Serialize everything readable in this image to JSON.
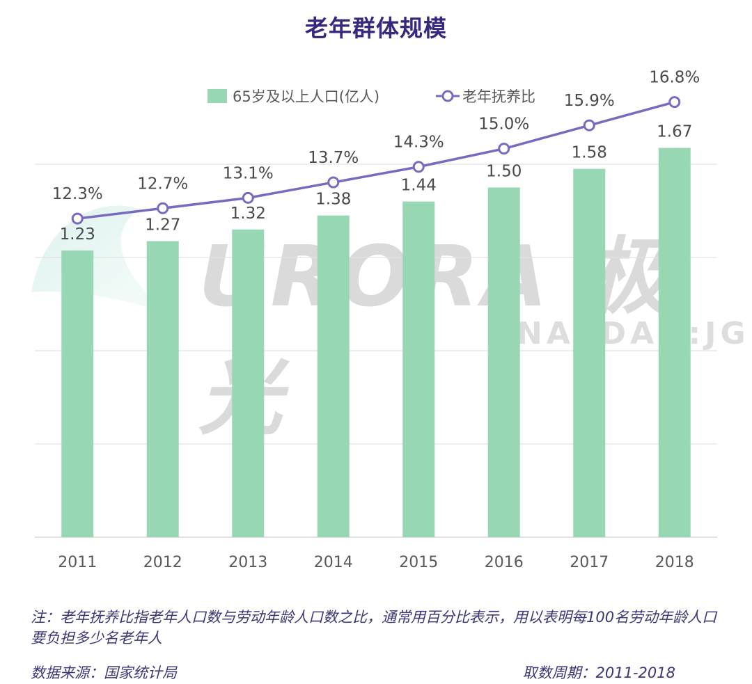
{
  "title": "老年群体规模",
  "legend": {
    "bar_label": "65岁及以上人口(亿人)",
    "line_label": "老年抚养比"
  },
  "watermark": {
    "brand": "URORA",
    "brand_cn": "极光",
    "ticker": "NASDAQ:JG"
  },
  "colors": {
    "bar": "#97d7b3",
    "line": "#7b69c0",
    "title": "#35287f",
    "grid": "#e2e2e2",
    "text": "#595959"
  },
  "chart_data": {
    "type": "bar",
    "categories": [
      "2011",
      "2012",
      "2013",
      "2014",
      "2015",
      "2016",
      "2017",
      "2018"
    ],
    "series": [
      {
        "name": "65岁及以上人口(亿人)",
        "type": "bar",
        "axis": "left",
        "values": [
          1.23,
          1.27,
          1.32,
          1.38,
          1.44,
          1.5,
          1.58,
          1.67
        ],
        "labels": [
          "1.23",
          "1.27",
          "1.32",
          "1.38",
          "1.44",
          "1.50",
          "1.58",
          "1.67"
        ]
      },
      {
        "name": "老年抚养比",
        "type": "line",
        "axis": "right",
        "values": [
          12.3,
          12.7,
          13.1,
          13.7,
          14.3,
          15.0,
          15.9,
          16.8
        ],
        "labels": [
          "12.3%",
          "12.7%",
          "13.1%",
          "13.7%",
          "14.3%",
          "15.0%",
          "15.9%",
          "16.8%"
        ]
      }
    ],
    "ylim_left": [
      0,
      2.0
    ],
    "ylim_right": [
      0,
      18
    ],
    "grid": true,
    "legend_position": "top-center"
  },
  "note": "注：老年抚养比指老年人口数与劳动年龄人口数之比，通常用百分比表示，用以表明每100名劳动年龄人口要负担多少名老年人",
  "source": "数据来源：国家统计局",
  "period": "取数周期：2011-2018"
}
